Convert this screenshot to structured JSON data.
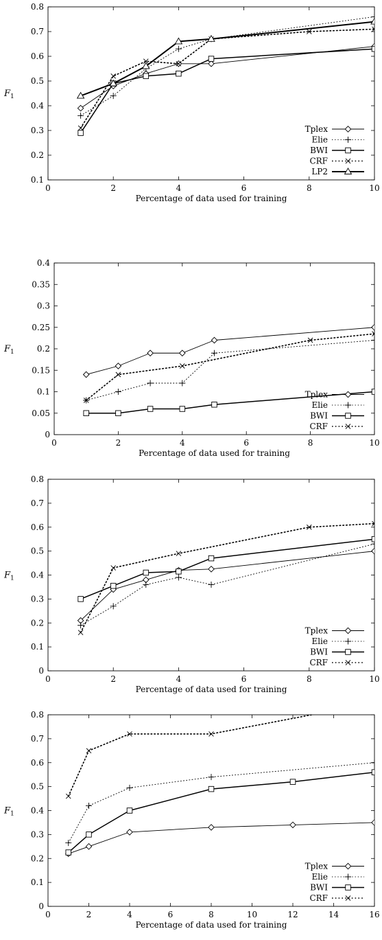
{
  "chart_data": [
    {
      "type": "line",
      "title": "",
      "xlabel": "Percentage of data used for training",
      "ylabel": "F",
      "ylabel_sub": "1",
      "xlim": [
        0,
        10
      ],
      "ylim": [
        0.1,
        0.8
      ],
      "xticks": [
        0,
        2,
        4,
        6,
        8,
        10
      ],
      "yticks": [
        0.1,
        0.2,
        0.3,
        0.4,
        0.5,
        0.6,
        0.7,
        0.8
      ],
      "ytick_labels": [
        "0.1",
        "0.2",
        "0.3",
        "0.4",
        "0.5",
        "0.6",
        "0.7",
        "0.8"
      ],
      "grid": false,
      "legend": "bottom-right",
      "series": [
        {
          "name": "Tplex",
          "marker": "diamond",
          "style": "solid-thin",
          "x": [
            1,
            2,
            3,
            4,
            5,
            10
          ],
          "values": [
            0.39,
            0.48,
            0.53,
            0.57,
            0.57,
            0.64
          ]
        },
        {
          "name": "Elie",
          "marker": "plus",
          "style": "dotted-thin",
          "x": [
            1,
            2,
            3,
            4,
            5,
            10
          ],
          "values": [
            0.36,
            0.44,
            0.55,
            0.63,
            0.67,
            0.76
          ]
        },
        {
          "name": "BWI",
          "marker": "square",
          "style": "solid",
          "x": [
            1,
            2,
            3,
            4,
            5,
            10
          ],
          "values": [
            0.29,
            0.49,
            0.52,
            0.53,
            0.59,
            0.63
          ]
        },
        {
          "name": "CRF",
          "marker": "cross",
          "style": "dotted",
          "x": [
            1,
            2,
            3,
            4,
            5,
            8,
            10
          ],
          "values": [
            0.31,
            0.52,
            0.58,
            0.57,
            0.67,
            0.7,
            0.71
          ]
        },
        {
          "name": "LP2",
          "marker": "triangle",
          "style": "solid-thick",
          "x": [
            1,
            2,
            3,
            4,
            5,
            10
          ],
          "values": [
            0.44,
            0.49,
            0.56,
            0.66,
            0.67,
            0.74
          ]
        }
      ]
    },
    {
      "type": "line",
      "title": "",
      "xlabel": "Percentage of data used for training",
      "ylabel": "F",
      "ylabel_sub": "1",
      "xlim": [
        0,
        10
      ],
      "ylim": [
        0,
        0.4
      ],
      "xticks": [
        0,
        2,
        4,
        6,
        8,
        10
      ],
      "yticks": [
        0,
        0.05,
        0.1,
        0.15,
        0.2,
        0.25,
        0.3,
        0.35,
        0.4
      ],
      "ytick_labels": [
        "0",
        "0.05",
        "0.1",
        "0.15",
        "0.2",
        "0.25",
        "0.3",
        "0.35",
        "0.4"
      ],
      "grid": false,
      "legend": "bottom-right",
      "series": [
        {
          "name": "Tplex",
          "marker": "diamond",
          "style": "solid-thin",
          "x": [
            1,
            2,
            3,
            4,
            5,
            10
          ],
          "values": [
            0.14,
            0.16,
            0.19,
            0.19,
            0.22,
            0.25
          ]
        },
        {
          "name": "Elie",
          "marker": "plus",
          "style": "dotted-thin",
          "x": [
            1,
            2,
            3,
            4,
            5,
            10
          ],
          "values": [
            0.08,
            0.1,
            0.12,
            0.12,
            0.19,
            0.22
          ]
        },
        {
          "name": "BWI",
          "marker": "square",
          "style": "solid",
          "x": [
            1,
            2,
            3,
            4,
            5,
            10
          ],
          "values": [
            0.05,
            0.05,
            0.06,
            0.06,
            0.07,
            0.1
          ]
        },
        {
          "name": "CRF",
          "marker": "cross",
          "style": "dotted",
          "x": [
            1,
            2,
            4,
            8,
            10
          ],
          "values": [
            0.08,
            0.14,
            0.16,
            0.22,
            0.235
          ]
        }
      ]
    },
    {
      "type": "line",
      "title": "",
      "xlabel": "Percentage of data used for training",
      "ylabel": "F",
      "ylabel_sub": "1",
      "xlim": [
        0,
        10
      ],
      "ylim": [
        0,
        0.8
      ],
      "xticks": [
        0,
        2,
        4,
        6,
        8,
        10
      ],
      "yticks": [
        0,
        0.1,
        0.2,
        0.3,
        0.4,
        0.5,
        0.6,
        0.7,
        0.8
      ],
      "ytick_labels": [
        "0",
        "0.1",
        "0.2",
        "0.3",
        "0.4",
        "0.5",
        "0.6",
        "0.7",
        "0.8"
      ],
      "grid": false,
      "legend": "bottom-right",
      "series": [
        {
          "name": "Tplex",
          "marker": "diamond",
          "style": "solid-thin",
          "x": [
            1,
            2,
            3,
            4,
            5,
            10
          ],
          "values": [
            0.21,
            0.34,
            0.38,
            0.42,
            0.425,
            0.5
          ]
        },
        {
          "name": "Elie",
          "marker": "plus",
          "style": "dotted-thin",
          "x": [
            1,
            2,
            3,
            4,
            5,
            10
          ],
          "values": [
            0.19,
            0.27,
            0.36,
            0.39,
            0.36,
            0.53
          ]
        },
        {
          "name": "BWI",
          "marker": "square",
          "style": "solid",
          "x": [
            1,
            2,
            3,
            4,
            5,
            10
          ],
          "values": [
            0.3,
            0.355,
            0.41,
            0.415,
            0.47,
            0.55
          ]
        },
        {
          "name": "CRF",
          "marker": "cross",
          "style": "dotted",
          "x": [
            1,
            2,
            4,
            8,
            10
          ],
          "values": [
            0.16,
            0.43,
            0.49,
            0.6,
            0.615
          ]
        }
      ]
    },
    {
      "type": "line",
      "title": "",
      "xlabel": "Percentage of data used for training",
      "ylabel": "F",
      "ylabel_sub": "1",
      "xlim": [
        0,
        16
      ],
      "ylim": [
        0,
        0.8
      ],
      "xticks": [
        0,
        2,
        4,
        6,
        8,
        10,
        12,
        14,
        16
      ],
      "yticks": [
        0,
        0.1,
        0.2,
        0.3,
        0.4,
        0.5,
        0.6,
        0.7,
        0.8
      ],
      "ytick_labels": [
        "0",
        "0.1",
        "0.2",
        "0.3",
        "0.4",
        "0.5",
        "0.6",
        "0.7",
        "0.8"
      ],
      "grid": false,
      "legend": "bottom-right",
      "series": [
        {
          "name": "Tplex",
          "marker": "diamond",
          "style": "solid-thin",
          "x": [
            1,
            2,
            4,
            8,
            12,
            16
          ],
          "values": [
            0.22,
            0.25,
            0.31,
            0.33,
            0.34,
            0.35
          ]
        },
        {
          "name": "Elie",
          "marker": "plus",
          "style": "dotted-thin",
          "x": [
            1,
            2,
            4,
            8,
            16
          ],
          "values": [
            0.265,
            0.42,
            0.495,
            0.54,
            0.6
          ]
        },
        {
          "name": "BWI",
          "marker": "square",
          "style": "solid",
          "x": [
            1,
            2,
            4,
            8,
            12,
            16
          ],
          "values": [
            0.225,
            0.3,
            0.4,
            0.49,
            0.52,
            0.56
          ]
        },
        {
          "name": "CRF",
          "marker": "cross",
          "style": "dotted",
          "x": [
            1,
            2,
            4,
            8,
            16
          ],
          "values": [
            0.46,
            0.65,
            0.72,
            0.72,
            0.85
          ]
        }
      ]
    }
  ]
}
